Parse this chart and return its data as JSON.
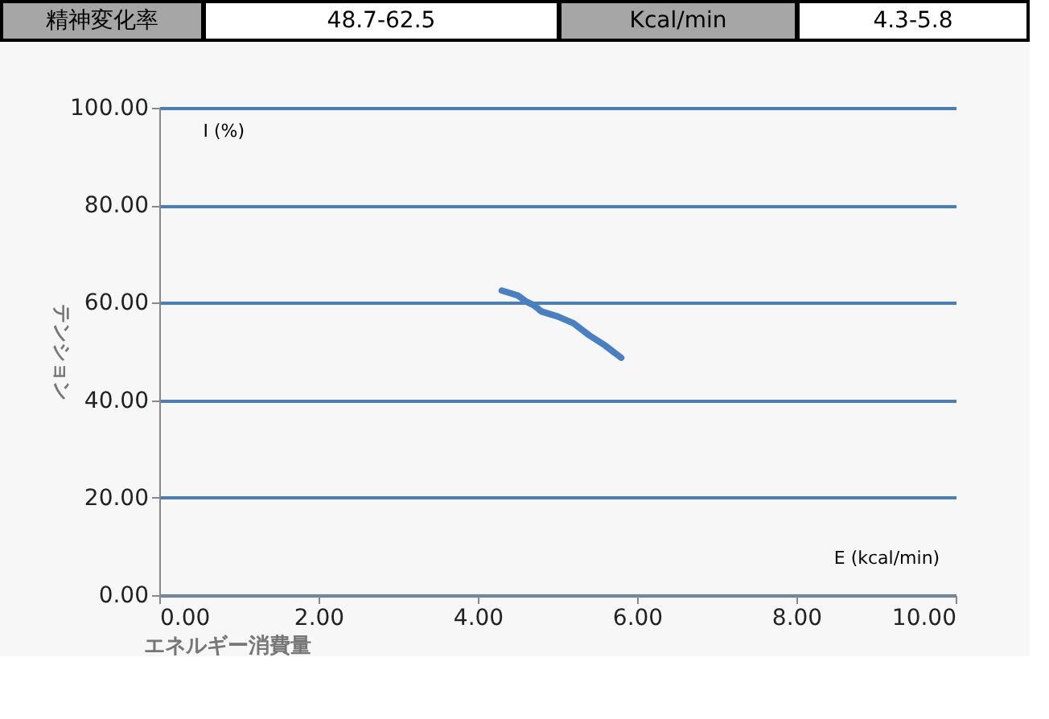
{
  "chart_data": {
    "type": "line",
    "annotations": [
      "精神変化率",
      "48.7-62.5",
      "Kcal/min",
      "4.3-5.8",
      "I (%)",
      "E (kcal/min)"
    ],
    "xlabel": "エネルギー消費量",
    "ylabel": "テンション",
    "series": [
      {
        "color": "#4a7fc1",
        "x": [
          4.3,
          4.4,
          4.5,
          4.6,
          4.7,
          4.8,
          5.0,
          5.2,
          5.4,
          5.6,
          5.8
        ],
        "values": [
          62.5,
          62.0,
          61.5,
          60.3,
          59.5,
          58.2,
          57.2,
          55.8,
          53.3,
          51.2,
          48.7
        ]
      }
    ],
    "xlim": [
      0,
      10
    ],
    "xticks": [
      {
        "value": 0,
        "label": "0.00"
      },
      {
        "value": 2,
        "label": "2.00"
      },
      {
        "value": 4,
        "label": "4.00"
      },
      {
        "value": 6,
        "label": "6.00"
      },
      {
        "value": 8,
        "label": "8.00"
      },
      {
        "value": 10,
        "label": "10.00"
      }
    ],
    "ylim": [
      0,
      100
    ],
    "yticks": [
      {
        "value": 0,
        "label": "0.00"
      },
      {
        "value": 20,
        "label": "20.00"
      },
      {
        "value": 40,
        "label": "40.00"
      },
      {
        "value": 60,
        "label": "60.00"
      },
      {
        "value": 80,
        "label": "80.00"
      },
      {
        "value": 100,
        "label": "100.00"
      }
    ],
    "grid": "y",
    "marker": "none",
    "line_style": "solid"
  }
}
